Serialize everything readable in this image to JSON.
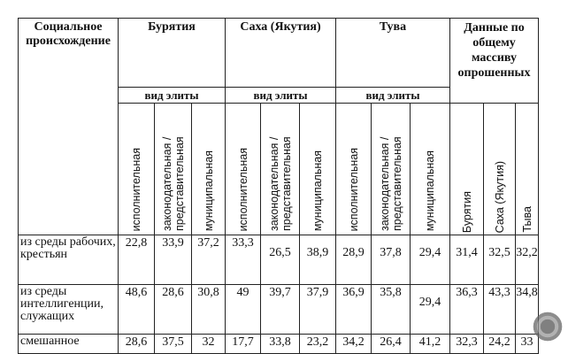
{
  "table": {
    "origin_header": "Социальное происхождение",
    "groups": [
      "Бурятия",
      "Саха (Якутия)",
      "Тува"
    ],
    "total_header": "Данные по общему массиву опрошенных",
    "elite_type_label": "вид элиты",
    "sub_columns": [
      "исполнительная",
      "законодательная / представительная",
      "муниципальная"
    ],
    "total_sub_columns": [
      "Бурятия",
      "Саха (Якутия)",
      "Тыва"
    ],
    "rows": [
      {
        "label": "из среды рабочих, крестьян",
        "values": [
          "22,8",
          "33,9",
          "37,2",
          "33,3",
          "26,5",
          "38,9",
          "28,9",
          "37,8",
          "29,4",
          "31,4",
          "32,5",
          "32,2"
        ]
      },
      {
        "label": "из среды интеллигенции, служащих",
        "values": [
          "48,6",
          "28,6",
          "30,8",
          "49",
          "39,7",
          "37,9",
          "36,9",
          "35,8",
          "29,4",
          "36,3",
          "43,3",
          "34,8"
        ]
      },
      {
        "label": "смешанное",
        "values": [
          "28,6",
          "37,5",
          "32",
          "17,7",
          "33,8",
          "23,2",
          "34,2",
          "26,4",
          "41,2",
          "32,3",
          "24,2",
          "33"
        ]
      }
    ]
  }
}
